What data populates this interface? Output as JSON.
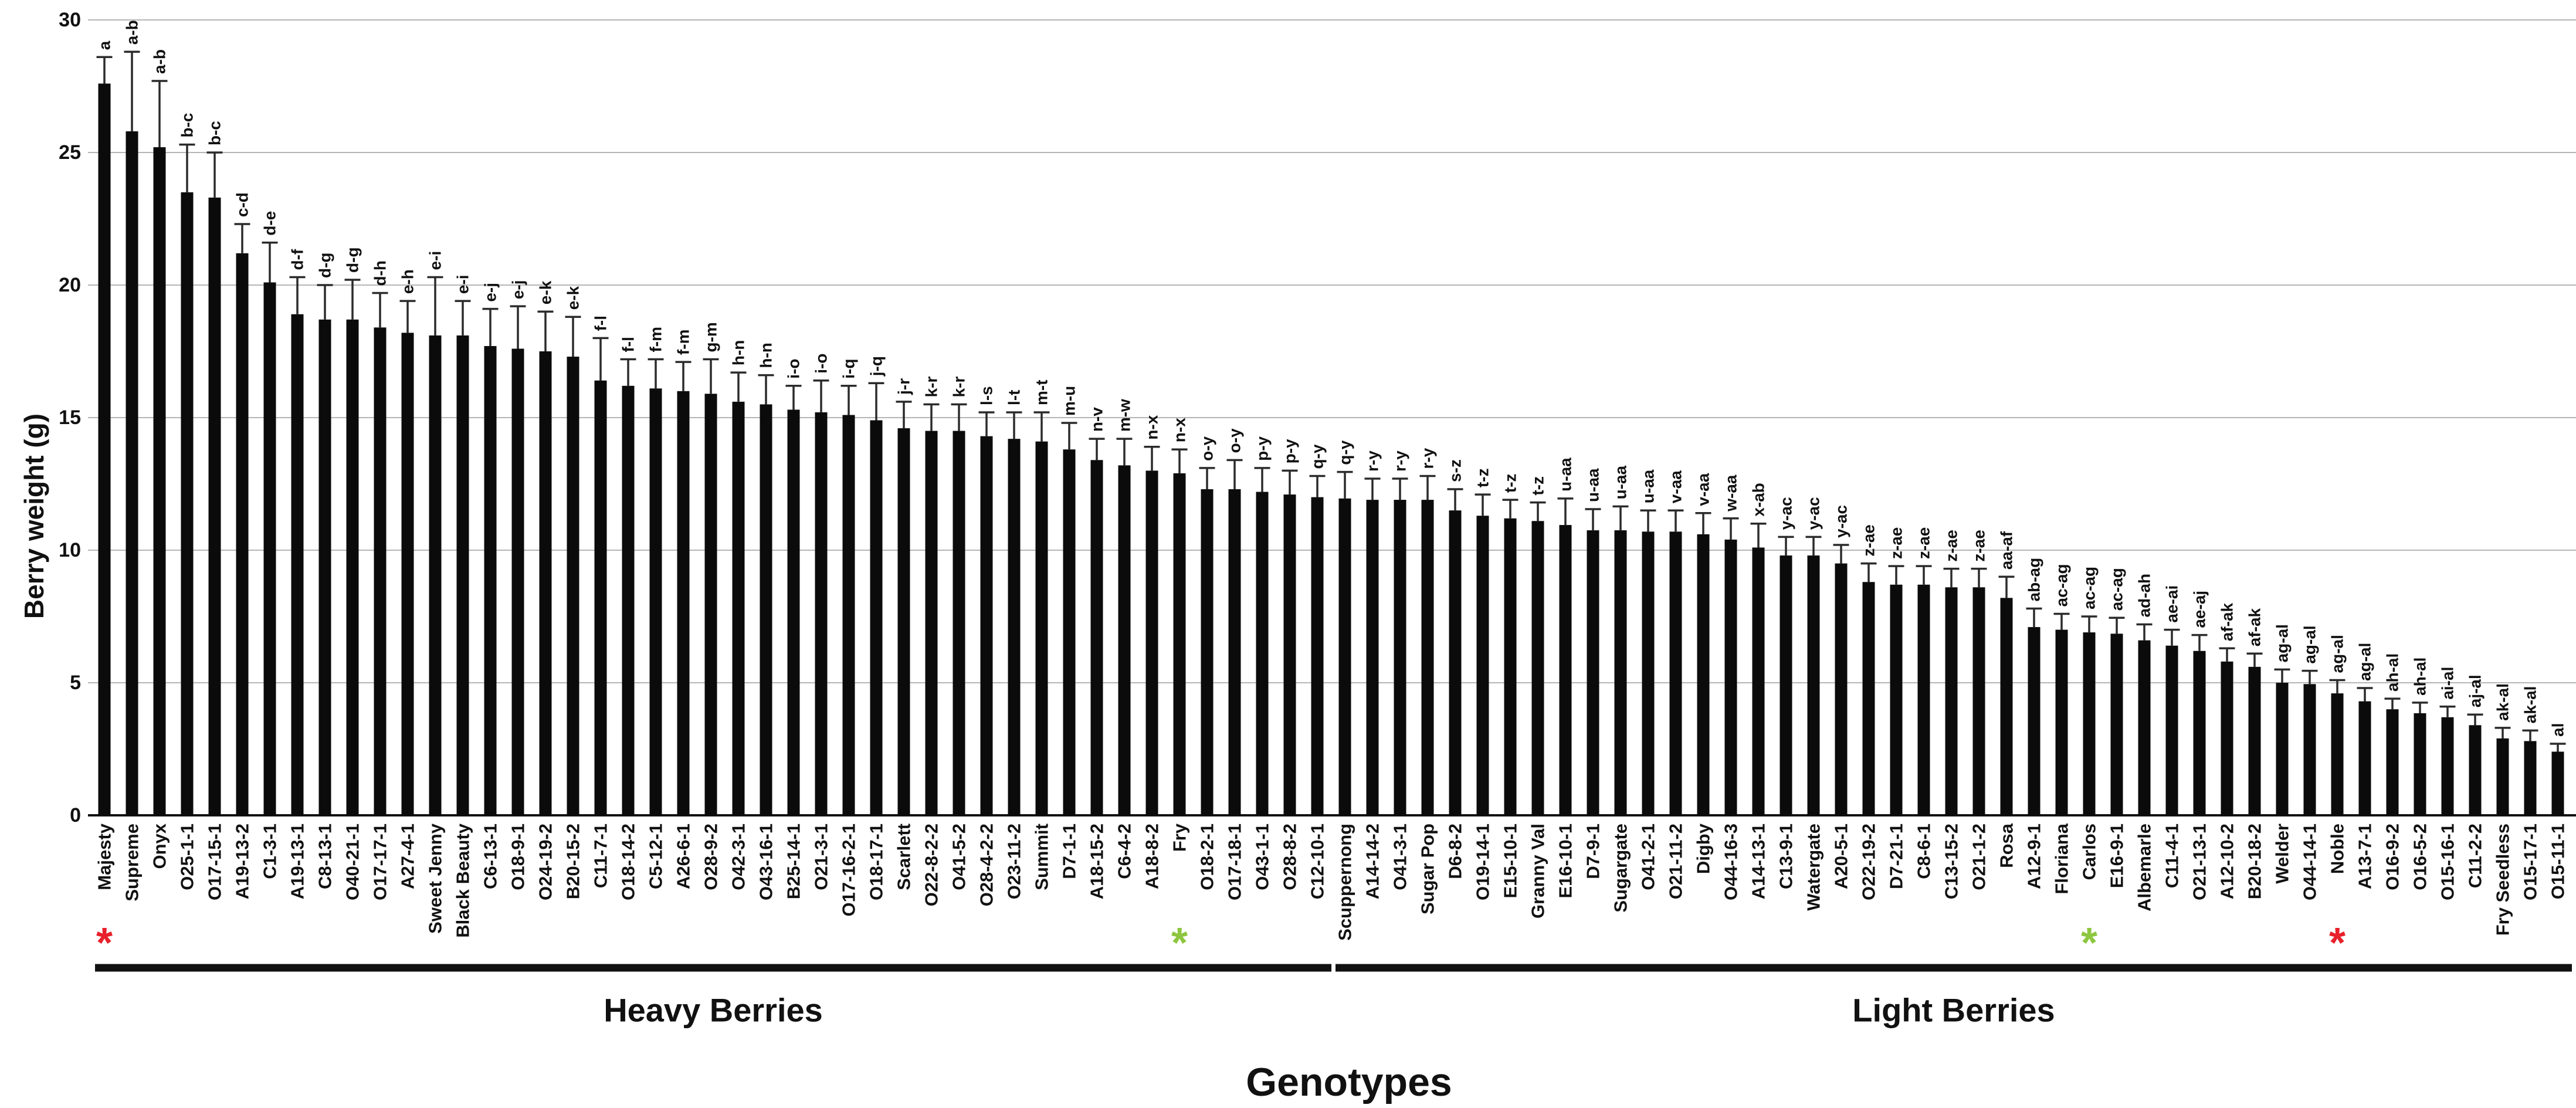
{
  "figure": {
    "y_axis_title": "Berry weight (g)",
    "x_axis_title": "Genotypes",
    "heavy_group_label": "Heavy Berries",
    "light_group_label": "Light Berries",
    "colors": {
      "bar": "#0b0b0b",
      "error_bar": "#2b2b2b",
      "gridline": "#b5b5b5",
      "axis_line": "#111111",
      "text": "#111111",
      "red_asterisk": "#e8212b",
      "green_asterisk": "#8dc63f"
    }
  },
  "chart_data": {
    "type": "bar",
    "title": "",
    "ylabel": "Berry weight (g)",
    "xlabel": "Genotypes",
    "ylim": [
      0,
      30
    ],
    "yticks": [
      0,
      5,
      10,
      15,
      20,
      25,
      30
    ],
    "grid": true,
    "legend": "none",
    "bar_color": "black",
    "error_bars": "upper only, capped",
    "groups": [
      {
        "name": "Heavy Berries",
        "start_index": 0,
        "end_index": 44
      },
      {
        "name": "Light Berries",
        "start_index": 45,
        "end_index": 89
      }
    ],
    "markers_legend": [
      {
        "symbol": "red-asterisk",
        "bars": [
          "Majesty",
          "Noble"
        ]
      },
      {
        "symbol": "green-asterisk",
        "bars": [
          "Fry",
          "Carlos"
        ]
      }
    ],
    "bars": [
      {
        "label": "Majesty",
        "value": 27.6,
        "error": 1.0,
        "letters": "a",
        "marker": "red-asterisk"
      },
      {
        "label": "Supreme",
        "value": 25.8,
        "error": 3.0,
        "letters": "a-b"
      },
      {
        "label": "Onyx",
        "value": 25.2,
        "error": 2.5,
        "letters": "a-b"
      },
      {
        "label": "O25-1-1",
        "value": 23.5,
        "error": 1.8,
        "letters": "b-c"
      },
      {
        "label": "O17-15-1",
        "value": 23.3,
        "error": 1.7,
        "letters": "b-c"
      },
      {
        "label": "A19-13-2",
        "value": 21.2,
        "error": 1.1,
        "letters": "c-d"
      },
      {
        "label": "C1-3-1",
        "value": 20.1,
        "error": 1.5,
        "letters": "d-e"
      },
      {
        "label": "A19-13-1",
        "value": 18.9,
        "error": 1.4,
        "letters": "d-f"
      },
      {
        "label": "C8-13-1",
        "value": 18.7,
        "error": 1.3,
        "letters": "d-g"
      },
      {
        "label": "O40-21-1",
        "value": 18.7,
        "error": 1.5,
        "letters": "d-g"
      },
      {
        "label": "O17-17-1",
        "value": 18.4,
        "error": 1.3,
        "letters": "d-h"
      },
      {
        "label": "A27-4-1",
        "value": 18.2,
        "error": 1.2,
        "letters": "e-h"
      },
      {
        "label": "Sweet Jenny",
        "value": 18.1,
        "error": 2.2,
        "letters": "e-i"
      },
      {
        "label": "Black Beauty",
        "value": 18.1,
        "error": 1.3,
        "letters": "e-i"
      },
      {
        "label": "C6-13-1",
        "value": 17.7,
        "error": 1.4,
        "letters": "e-j"
      },
      {
        "label": "O18-9-1",
        "value": 17.6,
        "error": 1.6,
        "letters": "e-j"
      },
      {
        "label": "O24-19-2",
        "value": 17.5,
        "error": 1.5,
        "letters": "e-k"
      },
      {
        "label": "B20-15-2",
        "value": 17.3,
        "error": 1.5,
        "letters": "e-k"
      },
      {
        "label": "C11-7-1",
        "value": 16.4,
        "error": 1.6,
        "letters": "f-l"
      },
      {
        "label": "O18-14-2",
        "value": 16.2,
        "error": 1.0,
        "letters": "f-l"
      },
      {
        "label": "C5-12-1",
        "value": 16.1,
        "error": 1.1,
        "letters": "f-m"
      },
      {
        "label": "A26-6-1",
        "value": 16.0,
        "error": 1.1,
        "letters": "f-m"
      },
      {
        "label": "O28-9-2",
        "value": 15.9,
        "error": 1.3,
        "letters": "g-m"
      },
      {
        "label": "O42-3-1",
        "value": 15.6,
        "error": 1.1,
        "letters": "h-n"
      },
      {
        "label": "O43-16-1",
        "value": 15.5,
        "error": 1.1,
        "letters": "h-n"
      },
      {
        "label": "B25-14-1",
        "value": 15.3,
        "error": 0.9,
        "letters": "i-o"
      },
      {
        "label": "O21-3-1",
        "value": 15.2,
        "error": 1.2,
        "letters": "i-o"
      },
      {
        "label": "O17-16-2-1",
        "value": 15.1,
        "error": 1.1,
        "letters": "i-q"
      },
      {
        "label": "O18-17-1",
        "value": 14.9,
        "error": 1.4,
        "letters": "j-q"
      },
      {
        "label": "Scarlett",
        "value": 14.6,
        "error": 1.0,
        "letters": "j-r"
      },
      {
        "label": "O22-8-2-2",
        "value": 14.5,
        "error": 1.0,
        "letters": "k-r"
      },
      {
        "label": "O41-5-2",
        "value": 14.5,
        "error": 1.0,
        "letters": "k-r"
      },
      {
        "label": "O28-4-2-2",
        "value": 14.3,
        "error": 0.9,
        "letters": "l-s"
      },
      {
        "label": "O23-11-2",
        "value": 14.2,
        "error": 1.0,
        "letters": "l-t"
      },
      {
        "label": "Summit",
        "value": 14.1,
        "error": 1.1,
        "letters": "m-t"
      },
      {
        "label": "D7-1-1",
        "value": 13.8,
        "error": 1.0,
        "letters": "m-u"
      },
      {
        "label": "A18-15-2",
        "value": 13.4,
        "error": 0.8,
        "letters": "n-v"
      },
      {
        "label": "C6-4-2",
        "value": 13.2,
        "error": 1.0,
        "letters": "m-w"
      },
      {
        "label": "A18-8-2",
        "value": 13.0,
        "error": 0.9,
        "letters": "n-x"
      },
      {
        "label": "Fry",
        "value": 12.9,
        "error": 0.9,
        "letters": "n-x",
        "marker": "green-asterisk"
      },
      {
        "label": "O18-2-1",
        "value": 12.3,
        "error": 0.8,
        "letters": "o-y"
      },
      {
        "label": "O17-18-1",
        "value": 12.3,
        "error": 1.1,
        "letters": "o-y"
      },
      {
        "label": "O43-1-1",
        "value": 12.2,
        "error": 0.9,
        "letters": "p-y"
      },
      {
        "label": "O28-8-2",
        "value": 12.1,
        "error": 0.9,
        "letters": "p-y"
      },
      {
        "label": "C12-10-1",
        "value": 12.0,
        "error": 0.8,
        "letters": "q-y"
      },
      {
        "label": "Scuppernong",
        "value": 11.95,
        "error": 1.0,
        "letters": "q-y"
      },
      {
        "label": "A14-14-2",
        "value": 11.9,
        "error": 0.8,
        "letters": "r-y"
      },
      {
        "label": "O41-3-1",
        "value": 11.9,
        "error": 0.8,
        "letters": "r-y"
      },
      {
        "label": "Sugar Pop",
        "value": 11.9,
        "error": 0.9,
        "letters": "r-y"
      },
      {
        "label": "D6-8-2",
        "value": 11.5,
        "error": 0.8,
        "letters": "s-z"
      },
      {
        "label": "O19-14-1",
        "value": 11.3,
        "error": 0.8,
        "letters": "t-z"
      },
      {
        "label": "E15-10-1",
        "value": 11.2,
        "error": 0.7,
        "letters": "t-z"
      },
      {
        "label": "Granny Val",
        "value": 11.1,
        "error": 0.7,
        "letters": "t-z"
      },
      {
        "label": "E16-10-1",
        "value": 10.95,
        "error": 1.0,
        "letters": "u-aa"
      },
      {
        "label": "D7-9-1",
        "value": 10.75,
        "error": 0.8,
        "letters": "u-aa"
      },
      {
        "label": "Sugargate",
        "value": 10.75,
        "error": 0.9,
        "letters": "u-aa"
      },
      {
        "label": "O41-2-1",
        "value": 10.7,
        "error": 0.8,
        "letters": "u-aa"
      },
      {
        "label": "O21-11-2",
        "value": 10.7,
        "error": 0.8,
        "letters": "v-aa"
      },
      {
        "label": "Digby",
        "value": 10.6,
        "error": 0.8,
        "letters": "v-aa"
      },
      {
        "label": "O44-16-3",
        "value": 10.4,
        "error": 0.8,
        "letters": "w-aa"
      },
      {
        "label": "A14-13-1",
        "value": 10.1,
        "error": 0.9,
        "letters": "x-ab"
      },
      {
        "label": "C13-9-1",
        "value": 9.8,
        "error": 0.7,
        "letters": "y-ac"
      },
      {
        "label": "Watergate",
        "value": 9.8,
        "error": 0.7,
        "letters": "y-ac"
      },
      {
        "label": "A20-5-1",
        "value": 9.5,
        "error": 0.7,
        "letters": "y-ac"
      },
      {
        "label": "O22-19-2",
        "value": 8.8,
        "error": 0.7,
        "letters": "z-ae"
      },
      {
        "label": "D7-21-1",
        "value": 8.7,
        "error": 0.7,
        "letters": "z-ae"
      },
      {
        "label": "C8-6-1",
        "value": 8.7,
        "error": 0.7,
        "letters": "z-ae"
      },
      {
        "label": "C13-15-2",
        "value": 8.6,
        "error": 0.7,
        "letters": "z-ae"
      },
      {
        "label": "O21-1-2",
        "value": 8.6,
        "error": 0.7,
        "letters": "z-ae"
      },
      {
        "label": "Rosa",
        "value": 8.2,
        "error": 0.8,
        "letters": "aa-af"
      },
      {
        "label": "A12-9-1",
        "value": 7.1,
        "error": 0.7,
        "letters": "ab-ag"
      },
      {
        "label": "Floriana",
        "value": 7.0,
        "error": 0.6,
        "letters": "ac-ag"
      },
      {
        "label": "Carlos",
        "value": 6.9,
        "error": 0.6,
        "letters": "ac-ag",
        "marker": "green-asterisk"
      },
      {
        "label": "E16-9-1",
        "value": 6.85,
        "error": 0.6,
        "letters": "ac-ag"
      },
      {
        "label": "Albemarle",
        "value": 6.6,
        "error": 0.6,
        "letters": "ad-ah"
      },
      {
        "label": "C11-4-1",
        "value": 6.4,
        "error": 0.6,
        "letters": "ae-ai"
      },
      {
        "label": "O21-13-1",
        "value": 6.2,
        "error": 0.6,
        "letters": "ae-aj"
      },
      {
        "label": "A12-10-2",
        "value": 5.8,
        "error": 0.5,
        "letters": "af-ak"
      },
      {
        "label": "B20-18-2",
        "value": 5.6,
        "error": 0.5,
        "letters": "af-ak"
      },
      {
        "label": "Welder",
        "value": 5.0,
        "error": 0.5,
        "letters": "ag-al"
      },
      {
        "label": "O44-14-1",
        "value": 4.95,
        "error": 0.5,
        "letters": "ag-al"
      },
      {
        "label": "Noble",
        "value": 4.6,
        "error": 0.5,
        "letters": "ag-al",
        "marker": "red-asterisk"
      },
      {
        "label": "A13-7-1",
        "value": 4.3,
        "error": 0.5,
        "letters": "ag-al"
      },
      {
        "label": "O16-9-2",
        "value": 4.0,
        "error": 0.4,
        "letters": "ah-al"
      },
      {
        "label": "O16-5-2",
        "value": 3.85,
        "error": 0.4,
        "letters": "ah-al"
      },
      {
        "label": "O15-16-1",
        "value": 3.7,
        "error": 0.4,
        "letters": "ai-al"
      },
      {
        "label": "C11-2-2",
        "value": 3.4,
        "error": 0.4,
        "letters": "aj-al"
      },
      {
        "label": "Fry Seedless",
        "value": 2.9,
        "error": 0.4,
        "letters": "ak-al"
      },
      {
        "label": "O15-17-1",
        "value": 2.8,
        "error": 0.4,
        "letters": "ak-al"
      },
      {
        "label": "O15-11-1",
        "value": 2.4,
        "error": 0.3,
        "letters": "al"
      }
    ]
  }
}
